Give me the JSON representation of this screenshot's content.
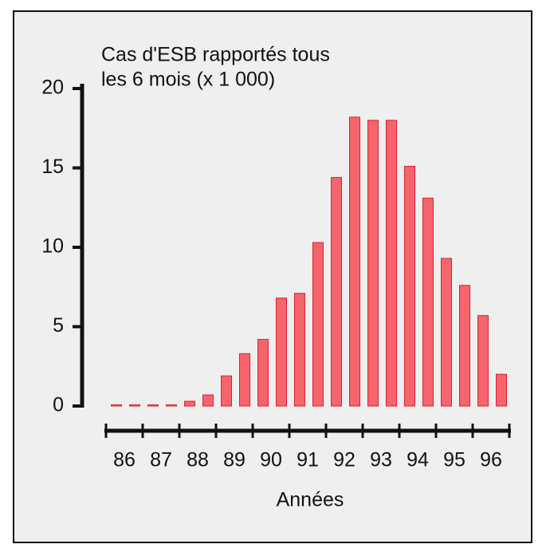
{
  "chart_data": {
    "type": "bar",
    "title": [
      "Cas d'ESB rapportés tous",
      "les 6 mois (x 1 000)"
    ],
    "x_label": "Années",
    "categories": [
      "86",
      null,
      "87",
      null,
      "88",
      null,
      "89",
      null,
      "90",
      null,
      "91",
      null,
      "92",
      null,
      "93",
      null,
      "94",
      null,
      "95",
      null,
      "96",
      null
    ],
    "values": [
      0,
      0,
      0,
      0,
      0.3,
      0.7,
      1.9,
      3.3,
      4.2,
      6.8,
      7.1,
      10.3,
      14.4,
      18.2,
      18.0,
      18.0,
      15.1,
      13.1,
      9.3,
      7.6,
      5.7,
      2.0
    ],
    "color": "#f6646c",
    "ylim": [
      0,
      20
    ],
    "yticks": [
      0,
      5,
      10,
      15,
      20
    ]
  }
}
